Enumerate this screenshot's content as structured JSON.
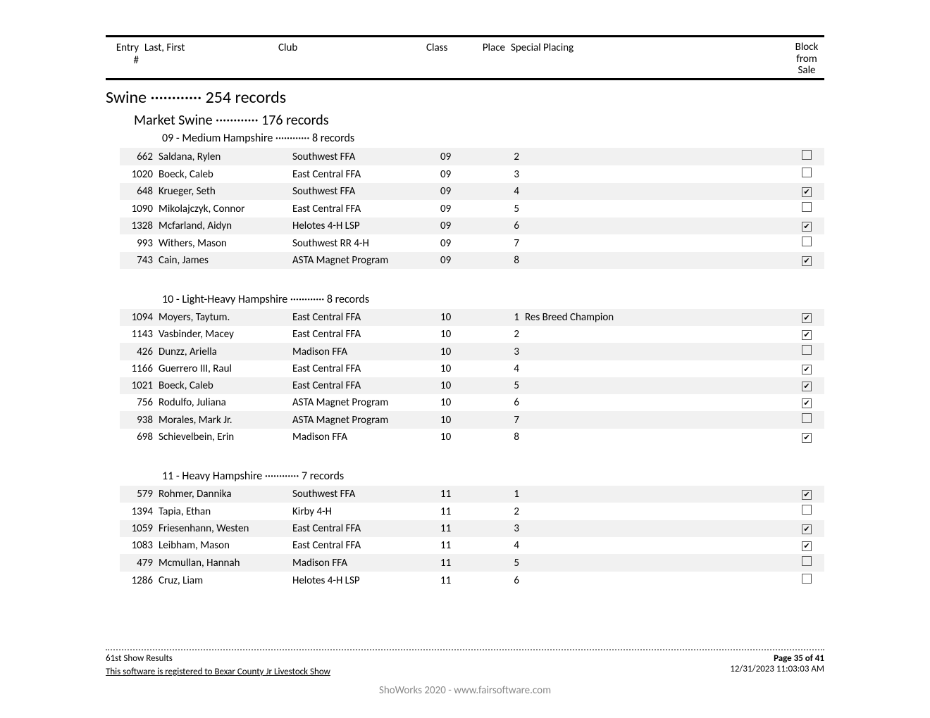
{
  "headers": {
    "entry": "Entry",
    "entry2": "#",
    "name": "Last, First",
    "club": "Club",
    "class": "Class",
    "place": "Place",
    "special": "Special Placing",
    "block1": "Block",
    "block2": "from",
    "block3": "Sale"
  },
  "species": {
    "label": "Swine ············ 254 records"
  },
  "division": {
    "label": "Market Swine ············ 176 records"
  },
  "classes": [
    {
      "title": "09 - Medium Hampshire ············ 8 records",
      "rows": [
        {
          "entry": "662",
          "name": "Saldana, Rylen",
          "club": "Southwest FFA",
          "class": "09",
          "place": "2",
          "special": "",
          "checked": false
        },
        {
          "entry": "1020",
          "name": "Boeck, Caleb",
          "club": "East Central FFA",
          "class": "09",
          "place": "3",
          "special": "",
          "checked": false
        },
        {
          "entry": "648",
          "name": "Krueger, Seth",
          "club": "Southwest FFA",
          "class": "09",
          "place": "4",
          "special": "",
          "checked": true
        },
        {
          "entry": "1090",
          "name": "Mikolajczyk, Connor",
          "club": "East Central FFA",
          "class": "09",
          "place": "5",
          "special": "",
          "checked": false
        },
        {
          "entry": "1328",
          "name": "Mcfarland, Aidyn",
          "club": "Helotes 4-H LSP",
          "class": "09",
          "place": "6",
          "special": "",
          "checked": true
        },
        {
          "entry": "993",
          "name": "Withers, Mason",
          "club": "Southwest RR 4-H",
          "class": "09",
          "place": "7",
          "special": "",
          "checked": false
        },
        {
          "entry": "743",
          "name": "Cain, James",
          "club": "ASTA Magnet Program",
          "class": "09",
          "place": "8",
          "special": "",
          "checked": true
        }
      ]
    },
    {
      "title": "10 - Light-Heavy Hampshire ············ 8 records",
      "rows": [
        {
          "entry": "1094",
          "name": "Moyers, Taytum.",
          "club": "East Central FFA",
          "class": "10",
          "place": "1",
          "special": "Res Breed Champion",
          "checked": true
        },
        {
          "entry": "1143",
          "name": "Vasbinder, Macey",
          "club": "East Central FFA",
          "class": "10",
          "place": "2",
          "special": "",
          "checked": true
        },
        {
          "entry": "426",
          "name": "Dunzz, Ariella",
          "club": "Madison FFA",
          "class": "10",
          "place": "3",
          "special": "",
          "checked": false
        },
        {
          "entry": "1166",
          "name": "Guerrero III, Raul",
          "club": "East Central FFA",
          "class": "10",
          "place": "4",
          "special": "",
          "checked": true
        },
        {
          "entry": "1021",
          "name": "Boeck, Caleb",
          "club": "East Central FFA",
          "class": "10",
          "place": "5",
          "special": "",
          "checked": true
        },
        {
          "entry": "756",
          "name": "Rodulfo, Juliana",
          "club": "ASTA Magnet Program",
          "class": "10",
          "place": "6",
          "special": "",
          "checked": true
        },
        {
          "entry": "938",
          "name": "Morales, Mark Jr.",
          "club": "ASTA Magnet Program",
          "class": "10",
          "place": "7",
          "special": "",
          "checked": false
        },
        {
          "entry": "698",
          "name": "Schievelbein, Erin",
          "club": "Madison FFA",
          "class": "10",
          "place": "8",
          "special": "",
          "checked": true
        }
      ]
    },
    {
      "title": "11 - Heavy Hampshire ············ 7 records",
      "rows": [
        {
          "entry": "579",
          "name": "Rohmer, Dannika",
          "club": "Southwest FFA",
          "class": "11",
          "place": "1",
          "special": "",
          "checked": true
        },
        {
          "entry": "1394",
          "name": "Tapia, Ethan",
          "club": "Kirby 4-H",
          "class": "11",
          "place": "2",
          "special": "",
          "checked": false
        },
        {
          "entry": "1059",
          "name": "Friesenhann, Westen",
          "club": "East Central FFA",
          "class": "11",
          "place": "3",
          "special": "",
          "checked": true
        },
        {
          "entry": "1083",
          "name": "Leibham, Mason",
          "club": "East Central FFA",
          "class": "11",
          "place": "4",
          "special": "",
          "checked": true
        },
        {
          "entry": "479",
          "name": "Mcmullan, Hannah",
          "club": "Madison FFA",
          "class": "11",
          "place": "5",
          "special": "",
          "checked": false
        },
        {
          "entry": "1286",
          "name": "Cruz, Liam",
          "club": "Helotes 4-H LSP",
          "class": "11",
          "place": "6",
          "special": "",
          "checked": false
        }
      ]
    }
  ],
  "footer": {
    "leftTitle": "61st Show Results",
    "page": "Page 35 of 41",
    "registered": "This software is registered to Bexar County Jr Livestock Show",
    "timestamp": "12/31/2023 11:03:03 AM",
    "software": "ShoWorks 2020 - www.fairsoftware.com"
  }
}
